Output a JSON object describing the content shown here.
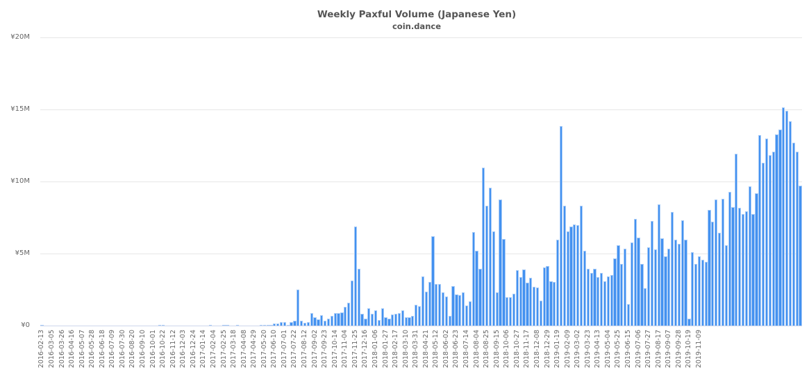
{
  "chart_data": {
    "type": "bar",
    "title": "Weekly Paxful Volume (Japanese Yen)",
    "subtitle": "coin.dance",
    "xlabel": "",
    "ylabel": "",
    "ylim": [
      0,
      20
    ],
    "y_unit": "¥ millions",
    "y_ticks": [
      "¥0",
      "¥5M",
      "¥10M",
      "¥15M",
      "¥20M"
    ],
    "grid": true,
    "legend": null,
    "bar_color": "#4391f0",
    "start_week": "2016-02-13",
    "x_tick_labels": [
      "2016-02-13",
      "2016-03-05",
      "2016-03-26",
      "2016-04-16",
      "2016-05-07",
      "2016-05-28",
      "2016-06-18",
      "2016-07-09",
      "2016-07-30",
      "2016-08-20",
      "2016-09-10",
      "2016-10-01",
      "2016-10-22",
      "2016-11-12",
      "2016-12-03",
      "2016-12-24",
      "2017-01-14",
      "2017-02-04",
      "2017-02-25",
      "2017-03-18",
      "2017-04-08",
      "2017-04-29",
      "2017-05-20",
      "2017-06-10",
      "2017-07-01",
      "2017-07-22",
      "2017-08-12",
      "2017-09-02",
      "2017-09-23",
      "2017-10-14",
      "2017-11-04",
      "2017-11-25",
      "2017-12-16",
      "2018-01-06",
      "2018-01-27",
      "2018-02-17",
      "2018-03-10",
      "2018-03-31",
      "2018-04-21",
      "2018-05-12",
      "2018-06-02",
      "2018-06-23",
      "2018-07-14",
      "2018-08-04",
      "2018-08-25",
      "2018-09-15",
      "2018-10-06",
      "2018-10-27",
      "2018-11-17",
      "2018-12-08",
      "2018-12-29",
      "2019-01-19",
      "2019-02-09",
      "2019-03-02",
      "2019-03-23",
      "2019-04-13",
      "2019-05-04",
      "2019-05-25",
      "2019-06-15",
      "2019-07-06",
      "2019-07-27",
      "2019-08-17",
      "2019-09-07",
      "2019-09-28",
      "2019-10-19",
      "2019-11-09"
    ],
    "values": [
      0.05,
      0,
      0,
      0,
      0,
      0,
      0,
      0,
      0,
      0,
      0,
      0,
      0,
      0,
      0,
      0,
      0,
      0,
      0,
      0,
      0,
      0,
      0,
      0,
      0,
      0,
      0,
      0,
      0,
      0,
      0,
      0,
      0,
      0,
      0,
      0.04,
      0.04,
      0,
      0,
      0,
      0,
      0,
      0,
      0,
      0,
      0,
      0,
      0,
      0,
      0,
      0.01,
      0,
      0,
      0,
      0.04,
      0.03,
      0,
      0,
      0.02,
      0,
      0,
      0,
      0,
      0,
      0,
      0.04,
      0.06,
      0.06,
      0.05,
      0.14,
      0.14,
      0.22,
      0.22,
      0.07,
      0.23,
      0.36,
      2.48,
      0.35,
      0.21,
      0.25,
      0.85,
      0.6,
      0.45,
      0.7,
      0.35,
      0.48,
      0.65,
      0.85,
      0.88,
      0.9,
      1.3,
      1.58,
      3.13,
      6.88,
      3.92,
      0.82,
      0.5,
      1.18,
      0.8,
      1.05,
      0.37,
      1.2,
      0.6,
      0.5,
      0.78,
      0.82,
      0.85,
      1.05,
      0.6,
      0.58,
      0.68,
      1.43,
      1.36,
      3.43,
      2.36,
      3.05,
      6.18,
      2.87,
      2.9,
      2.31,
      2.03,
      0.65,
      2.75,
      2.16,
      2.1,
      2.31,
      1.41,
      1.7,
      6.5,
      5.2,
      3.95,
      10.95,
      8.3,
      9.55,
      6.52,
      2.31,
      8.75,
      6.0,
      1.95,
      1.95,
      2.22,
      3.87,
      3.38,
      3.9,
      2.98,
      3.3,
      2.7,
      2.65,
      1.75,
      4.05,
      4.12,
      3.07,
      3.05,
      5.98,
      13.85,
      8.3,
      6.55,
      6.88,
      7.0,
      6.95,
      8.33,
      5.2,
      3.95,
      3.65,
      3.95,
      3.35,
      3.65,
      3.06,
      3.4,
      3.52,
      4.65,
      5.57,
      4.3,
      5.35,
      1.48,
      5.75,
      7.42,
      6.1,
      4.3,
      2.62,
      5.42,
      7.28,
      5.3,
      8.4,
      6.05,
      4.82,
      5.35,
      7.88,
      5.97,
      5.67,
      7.3,
      5.97,
      0.5,
      5.12,
      4.28,
      4.83,
      4.55,
      4.43,
      8.05,
      7.2,
      8.75,
      6.42,
      8.8,
      5.6,
      9.28,
      8.22,
      11.92,
      8.15,
      7.75,
      7.95,
      9.68,
      7.75,
      9.18,
      13.22,
      11.3,
      12.98,
      11.82,
      12.08,
      13.28,
      13.6,
      15.15,
      14.92,
      14.2,
      12.7,
      12.08,
      9.72
    ]
  }
}
